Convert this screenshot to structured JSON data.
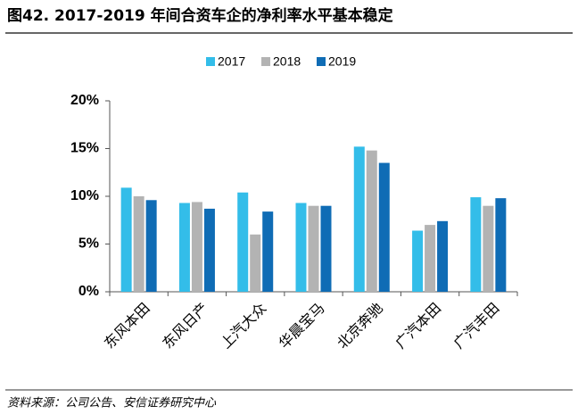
{
  "chart_data": {
    "type": "bar",
    "title": "图42. 2017-2019 年间合资车企的净利率水平基本稳定",
    "source": "资料来源：公司公告、安信证券研究中心",
    "categories": [
      "东风本田",
      "东风日产",
      "上汽大众",
      "华晨宝马",
      "北京奔驰",
      "广汽本田",
      "广汽丰田"
    ],
    "series": [
      {
        "name": "2017",
        "color": "#33bde9",
        "values": [
          10.9,
          9.3,
          10.4,
          9.3,
          15.2,
          6.4,
          9.9
        ]
      },
      {
        "name": "2018",
        "color": "#b3b3b3",
        "values": [
          10.0,
          9.4,
          6.0,
          9.0,
          14.8,
          7.0,
          9.0
        ]
      },
      {
        "name": "2019",
        "color": "#0f6cb5",
        "values": [
          9.6,
          8.7,
          8.4,
          9.0,
          13.5,
          7.4,
          9.8
        ]
      }
    ],
    "ylim": [
      0,
      20
    ],
    "yticks": [
      {
        "value": 0,
        "label": "0%"
      },
      {
        "value": 5,
        "label": "5%"
      },
      {
        "value": 10,
        "label": "10%"
      },
      {
        "value": 15,
        "label": "15%"
      },
      {
        "value": 20,
        "label": "20%"
      }
    ],
    "legend": "top"
  }
}
